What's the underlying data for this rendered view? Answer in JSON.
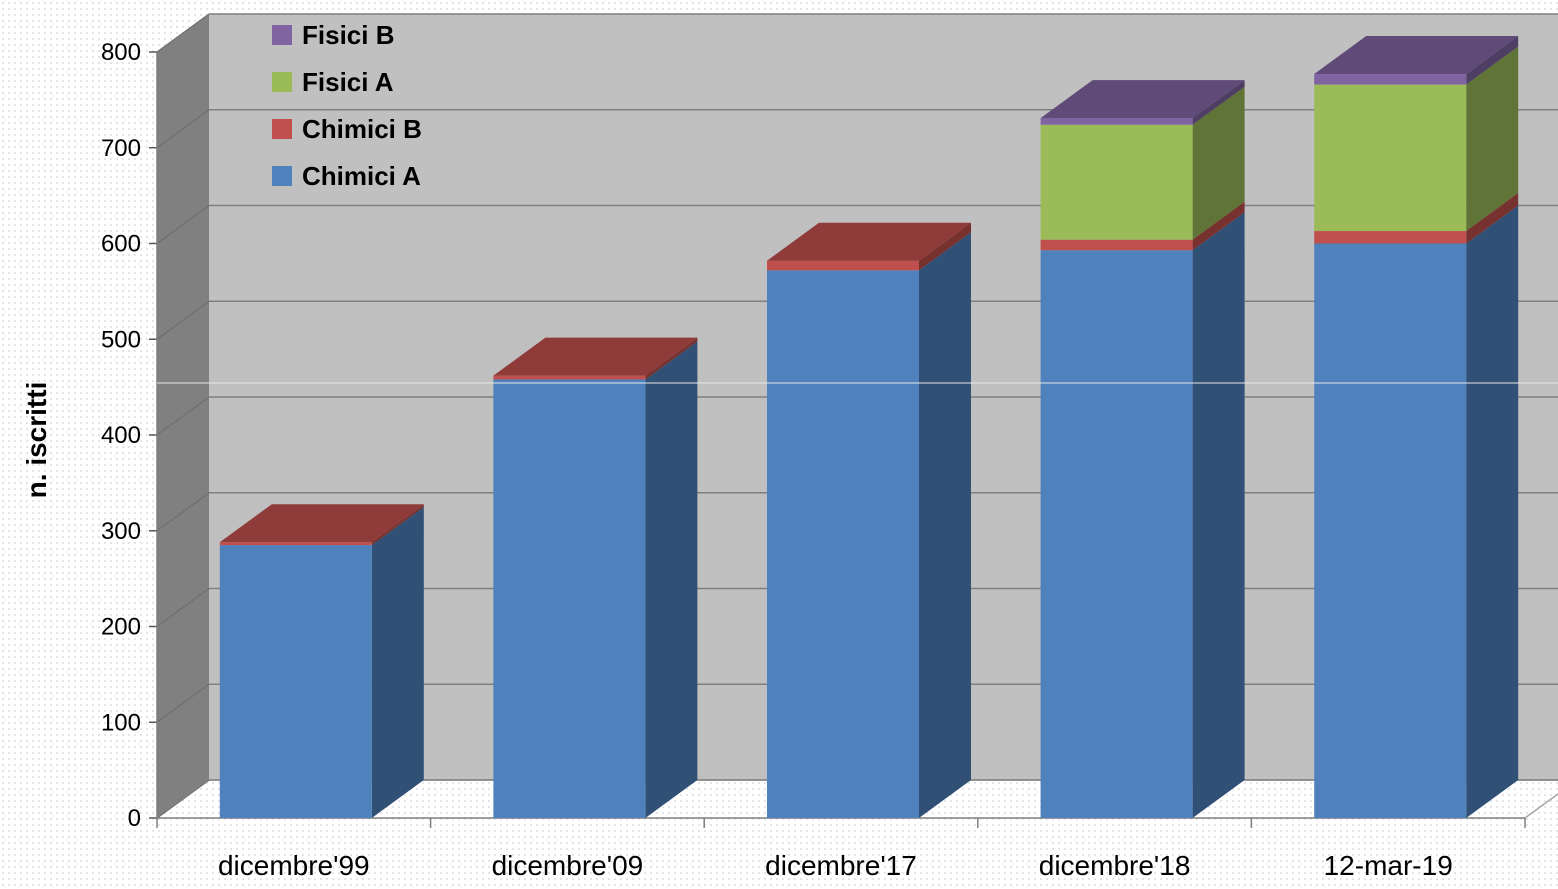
{
  "chart_data": {
    "type": "bar",
    "stacked": true,
    "three_d": true,
    "categories": [
      "dicembre'99",
      "dicembre'09",
      "dicembre'17",
      "dicembre'18",
      "12-mar-19"
    ],
    "series": [
      {
        "name": "Chimici A",
        "color": "#4f81bd",
        "values": [
          285,
          458,
          572,
          593,
          600
        ]
      },
      {
        "name": "Chimici B",
        "color": "#c0504d",
        "values": [
          3,
          4,
          10,
          11,
          13
        ]
      },
      {
        "name": "Fisici A",
        "color": "#9bbb59",
        "values": [
          0,
          0,
          0,
          120,
          153
        ]
      },
      {
        "name": "Fisici B",
        "color": "#8064a2",
        "values": [
          0,
          0,
          0,
          7,
          11
        ]
      }
    ],
    "legend_order": [
      "Fisici B",
      "Fisici A",
      "Chimici B",
      "Chimici A"
    ],
    "title": "",
    "xlabel": "",
    "ylabel": "n. iscritti",
    "ylim": [
      0,
      800
    ],
    "yticks": [
      0,
      100,
      200,
      300,
      400,
      500,
      600,
      700,
      800
    ],
    "grid": true,
    "legend_position": "top-left"
  },
  "colors": {
    "wall": "#c0c0c0",
    "side_wall": "#808080",
    "gridline": "#7f7f7f"
  }
}
